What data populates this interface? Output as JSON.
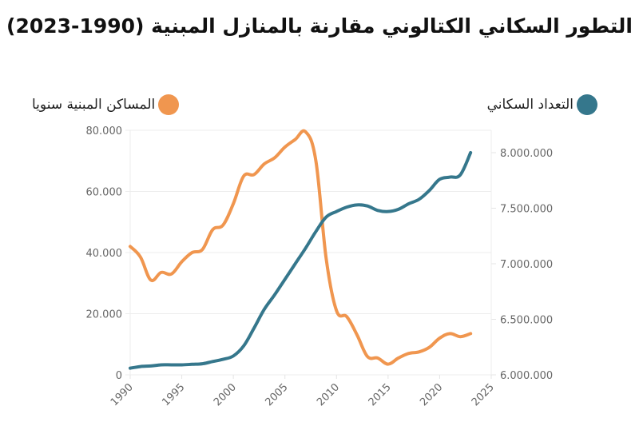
{
  "title": "التطور السكاني الكتالوني مقارنة بالمنازل المبنية (1990-2023)",
  "legend": {
    "population": {
      "label": "التعداد السكاني",
      "color": "#35778C"
    },
    "housing": {
      "label": "المساكن المبنية سنويا",
      "color": "#F0964F"
    }
  },
  "chart_data": {
    "type": "line",
    "title": "التطور السكاني الكتالوني مقارنة بالمنازل المبنية (1990-2023)",
    "xlabel": "",
    "x_ticks": [
      "1990",
      "1995",
      "2000",
      "2005",
      "2010",
      "2015",
      "2020",
      "2025"
    ],
    "xlim": [
      1990,
      2025
    ],
    "y_left": {
      "label": "المساكن المبنية سنويا",
      "ticks": [
        "0",
        "20.000",
        "40.000",
        "60.000",
        "80.000"
      ],
      "lim": [
        0,
        80000
      ]
    },
    "y_right": {
      "label": "التعداد السكاني",
      "ticks": [
        "6.000.000",
        "6.500.000",
        "7.000.000",
        "7.500.000",
        "8.000.000"
      ],
      "lim": [
        6000000,
        8000000
      ]
    },
    "grid": true,
    "legend_position": "top",
    "x": [
      1990,
      1991,
      1992,
      1993,
      1994,
      1995,
      1996,
      1997,
      1998,
      1999,
      2000,
      2001,
      2002,
      2003,
      2004,
      2005,
      2006,
      2007,
      2008,
      2009,
      2010,
      2011,
      2012,
      2013,
      2014,
      2015,
      2016,
      2017,
      2018,
      2019,
      2020,
      2021,
      2022,
      2023
    ],
    "series": [
      {
        "name": "المساكن المبنية سنويا",
        "axis": "left",
        "color": "#F0964F",
        "values": [
          42000,
          38500,
          31000,
          33500,
          33000,
          37000,
          40000,
          41000,
          47500,
          49000,
          56000,
          65000,
          65500,
          69000,
          71000,
          74500,
          77000,
          79500,
          70000,
          38000,
          21000,
          19000,
          13000,
          6000,
          5500,
          3500,
          5500,
          7000,
          7500,
          9000,
          12000,
          13500,
          12500,
          13500
        ]
      },
      {
        "name": "التعداد السكاني",
        "axis": "right",
        "color": "#35778C",
        "values": [
          6060000,
          6075000,
          6080000,
          6090000,
          6090000,
          6090000,
          6095000,
          6100000,
          6120000,
          6140000,
          6170000,
          6260000,
          6420000,
          6590000,
          6720000,
          6860000,
          7000000,
          7140000,
          7290000,
          7420000,
          7470000,
          7510000,
          7530000,
          7520000,
          7480000,
          7470000,
          7490000,
          7540000,
          7580000,
          7660000,
          7760000,
          7780000,
          7800000,
          8000000
        ]
      }
    ]
  }
}
